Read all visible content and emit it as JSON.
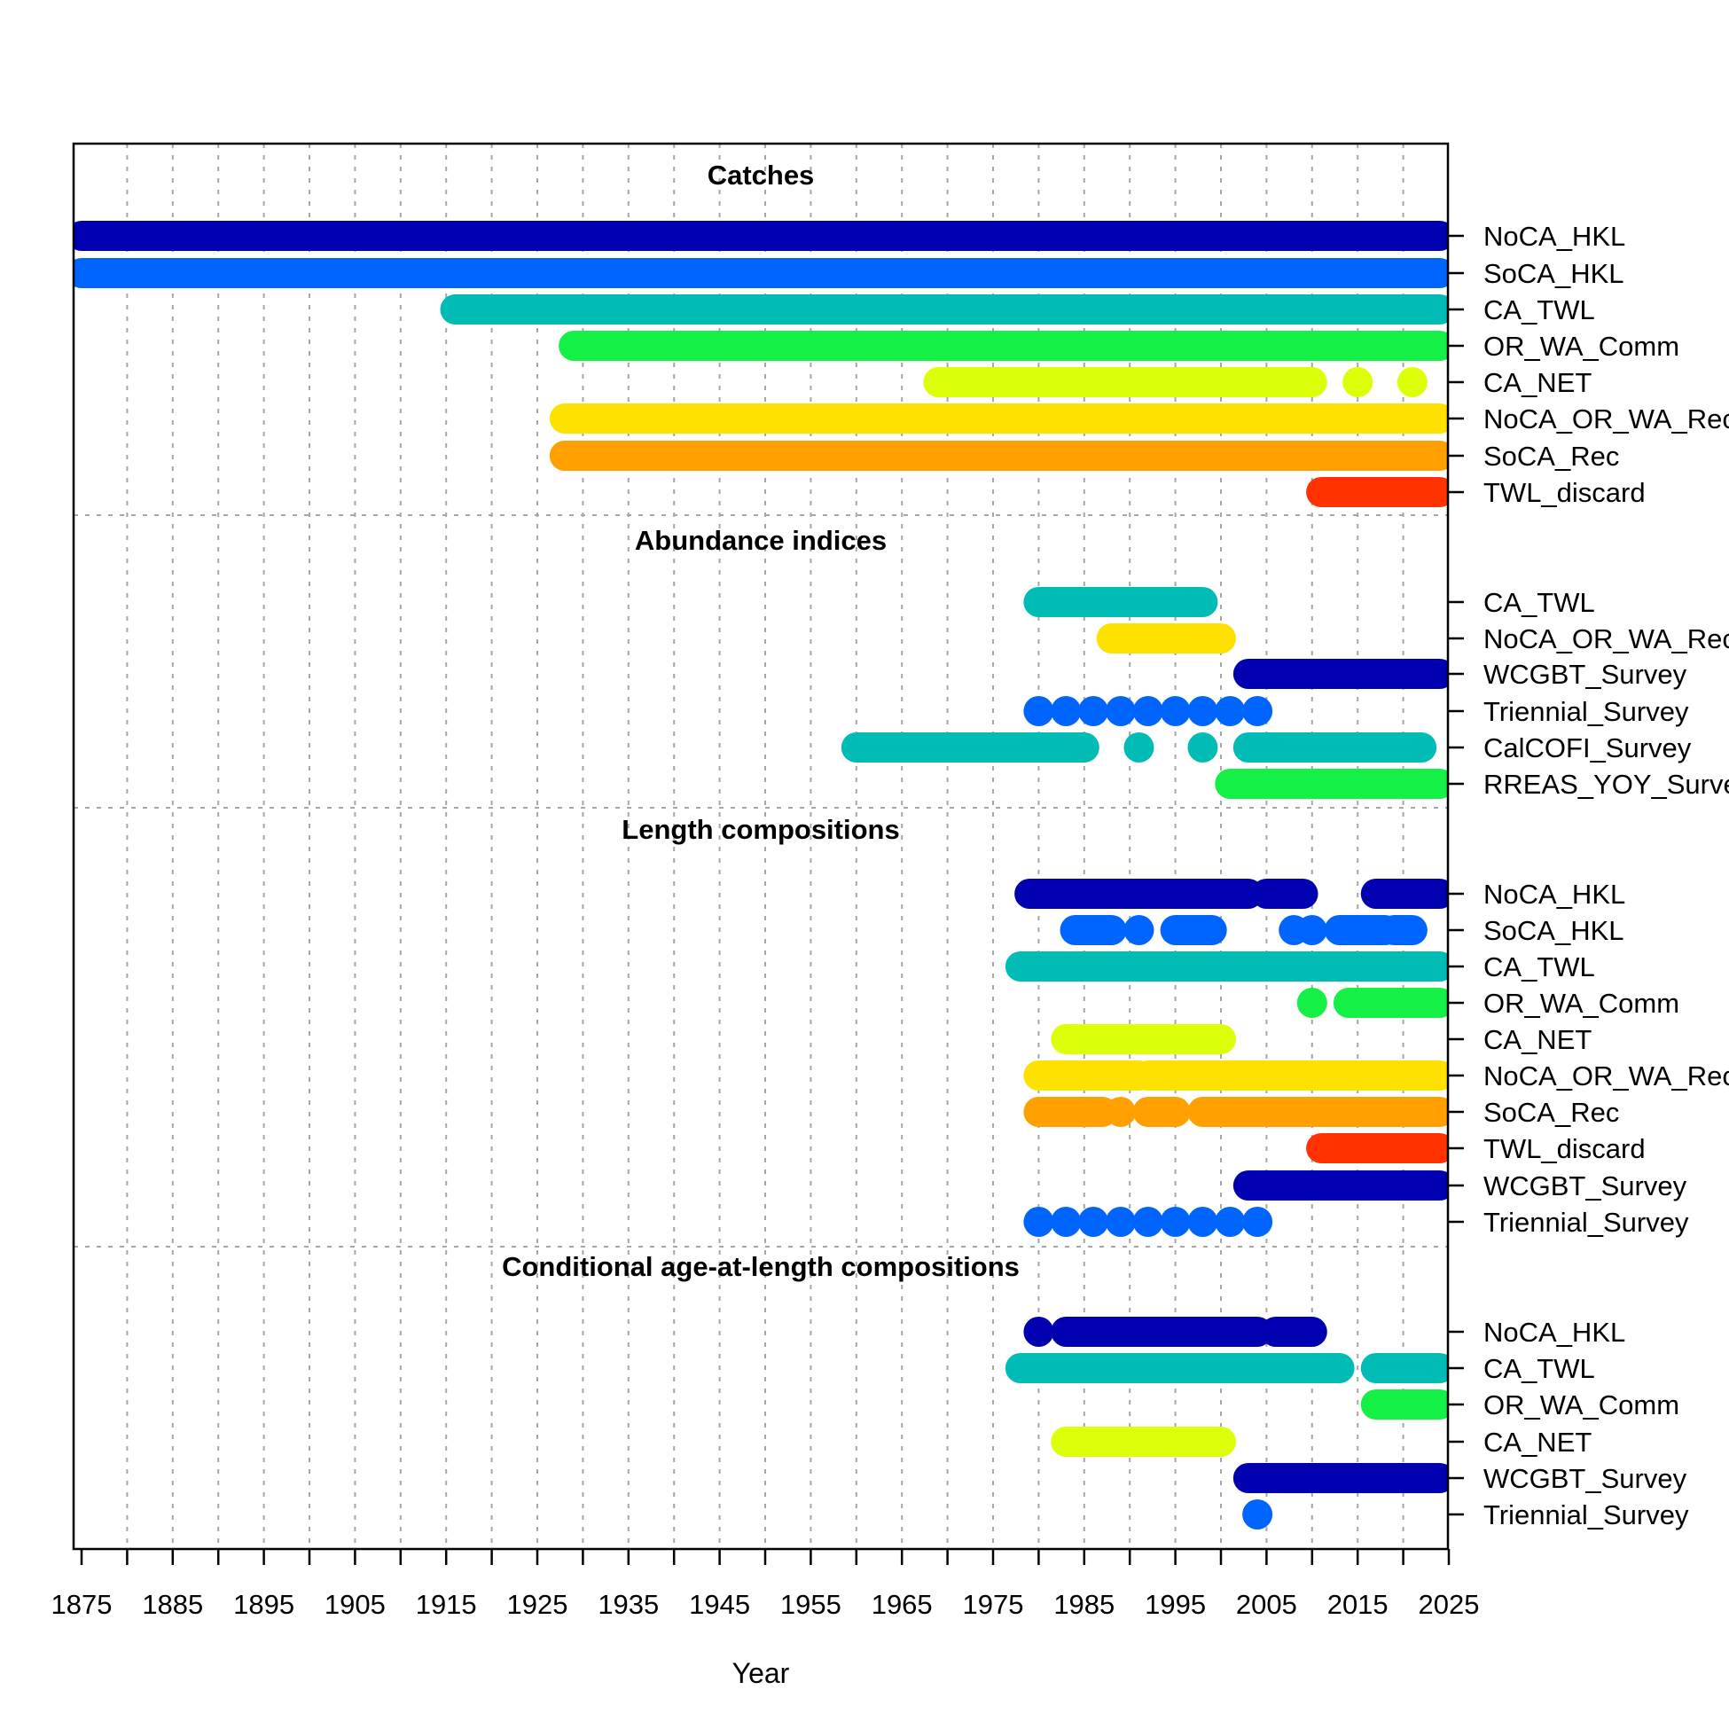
{
  "chart_data": {
    "type": "timeline",
    "xlabel": "Year",
    "xlim": [
      1875,
      2025
    ],
    "xticks": [
      "1875",
      "1885",
      "1895",
      "1905",
      "1915",
      "1925",
      "1935",
      "1945",
      "1955",
      "1965",
      "1975",
      "1985",
      "1995",
      "2005",
      "2015",
      "2025"
    ],
    "fleet_colors": {
      "NoCA_HKL": "#0000B0",
      "SoCA_HKL": "#0064FF",
      "CA_TWL": "#00BCB4",
      "OR_WA_Comm": "#14F046",
      "CA_NET": "#DCFF0A",
      "NoCA_OR_WA_Rec": "#FFE100",
      "SoCA_Rec": "#FFA000",
      "TWL_discard": "#FF3200",
      "WCGBT_Survey": "#0000B0",
      "Triennial_Survey": "#0064FF",
      "CalCOFI_Survey": "#00BCB4",
      "RREAS_YOY_Survey": "#14F046"
    },
    "sections": [
      {
        "title": "Catches",
        "rows": [
          {
            "label": "NoCA_HKL",
            "fleet": "NoCA_HKL",
            "ranges": [
              [
                1875,
                2024
              ]
            ]
          },
          {
            "label": "SoCA_HKL",
            "fleet": "SoCA_HKL",
            "ranges": [
              [
                1875,
                2024
              ]
            ]
          },
          {
            "label": "CA_TWL",
            "fleet": "CA_TWL",
            "ranges": [
              [
                1916,
                2024
              ]
            ]
          },
          {
            "label": "OR_WA_Comm",
            "fleet": "OR_WA_Comm",
            "ranges": [
              [
                1929,
                2024
              ]
            ]
          },
          {
            "label": "CA_NET",
            "fleet": "CA_NET",
            "ranges": [
              [
                1969,
                2010
              ],
              [
                2015,
                2015
              ],
              [
                2021,
                2021
              ]
            ]
          },
          {
            "label": "NoCA_OR_WA_Rec",
            "fleet": "NoCA_OR_WA_Rec",
            "ranges": [
              [
                1928,
                2024
              ]
            ]
          },
          {
            "label": "SoCA_Rec",
            "fleet": "SoCA_Rec",
            "ranges": [
              [
                1928,
                2024
              ]
            ]
          },
          {
            "label": "TWL_discard",
            "fleet": "TWL_discard",
            "ranges": [
              [
                2011,
                2024
              ]
            ]
          }
        ]
      },
      {
        "title": "Abundance indices",
        "rows": [
          {
            "label": "CA_TWL",
            "fleet": "CA_TWL",
            "ranges": [
              [
                1980,
                1998
              ]
            ]
          },
          {
            "label": "NoCA_OR_WA_Rec",
            "fleet": "NoCA_OR_WA_Rec",
            "ranges": [
              [
                1988,
                2000
              ]
            ]
          },
          {
            "label": "WCGBT_Survey",
            "fleet": "WCGBT_Survey",
            "ranges": [
              [
                2003,
                2024
              ]
            ]
          },
          {
            "label": "Triennial_Survey",
            "fleet": "Triennial_Survey",
            "ranges": [
              [
                1980,
                1980
              ],
              [
                1983,
                1983
              ],
              [
                1986,
                1986
              ],
              [
                1989,
                1989
              ],
              [
                1992,
                1992
              ],
              [
                1995,
                1995
              ],
              [
                1998,
                1998
              ],
              [
                2001,
                2001
              ],
              [
                2004,
                2004
              ]
            ]
          },
          {
            "label": "CalCOFI_Survey",
            "fleet": "CalCOFI_Survey",
            "ranges": [
              [
                1960,
                1985
              ],
              [
                1991,
                1991
              ],
              [
                1998,
                1998
              ],
              [
                2003,
                2022
              ]
            ]
          },
          {
            "label": "RREAS_YOY_Survey",
            "fleet": "RREAS_YOY_Survey",
            "ranges": [
              [
                2001,
                2024
              ]
            ]
          }
        ]
      },
      {
        "title": "Length compositions",
        "rows": [
          {
            "label": "NoCA_HKL",
            "fleet": "NoCA_HKL",
            "ranges": [
              [
                1979,
                2003
              ],
              [
                2005,
                2009
              ],
              [
                2017,
                2024
              ]
            ]
          },
          {
            "label": "SoCA_HKL",
            "fleet": "SoCA_HKL",
            "ranges": [
              [
                1984,
                1988
              ],
              [
                1991,
                1991
              ],
              [
                1995,
                1999
              ],
              [
                2008,
                2008
              ],
              [
                2010,
                2010
              ],
              [
                2013,
                2018
              ],
              [
                2019,
                2021
              ]
            ]
          },
          {
            "label": "CA_TWL",
            "fleet": "CA_TWL",
            "ranges": [
              [
                1978,
                2024
              ]
            ]
          },
          {
            "label": "OR_WA_Comm",
            "fleet": "OR_WA_Comm",
            "ranges": [
              [
                2010,
                2010
              ],
              [
                2014,
                2024
              ]
            ]
          },
          {
            "label": "CA_NET",
            "fleet": "CA_NET",
            "ranges": [
              [
                1983,
                2000
              ]
            ]
          },
          {
            "label": "NoCA_OR_WA_Rec",
            "fleet": "NoCA_OR_WA_Rec",
            "ranges": [
              [
                1980,
                1991
              ],
              [
                1992,
                2024
              ]
            ]
          },
          {
            "label": "SoCA_Rec",
            "fleet": "SoCA_Rec",
            "ranges": [
              [
                1980,
                1987
              ],
              [
                1989,
                1989
              ],
              [
                1992,
                1995
              ],
              [
                1998,
                2024
              ]
            ]
          },
          {
            "label": "TWL_discard",
            "fleet": "TWL_discard",
            "ranges": [
              [
                2011,
                2024
              ]
            ]
          },
          {
            "label": "WCGBT_Survey",
            "fleet": "WCGBT_Survey",
            "ranges": [
              [
                2003,
                2024
              ]
            ]
          },
          {
            "label": "Triennial_Survey",
            "fleet": "Triennial_Survey",
            "ranges": [
              [
                1980,
                1980
              ],
              [
                1983,
                1983
              ],
              [
                1986,
                1986
              ],
              [
                1989,
                1989
              ],
              [
                1992,
                1992
              ],
              [
                1995,
                1995
              ],
              [
                1998,
                1998
              ],
              [
                2001,
                2001
              ],
              [
                2004,
                2004
              ]
            ]
          }
        ]
      },
      {
        "title": "Conditional age-at-length compositions",
        "rows": [
          {
            "label": "NoCA_HKL",
            "fleet": "NoCA_HKL",
            "ranges": [
              [
                1980,
                1980
              ],
              [
                1983,
                2004
              ],
              [
                2006,
                2010
              ]
            ]
          },
          {
            "label": "CA_TWL",
            "fleet": "CA_TWL",
            "ranges": [
              [
                1978,
                2013
              ],
              [
                2017,
                2024
              ]
            ]
          },
          {
            "label": "OR_WA_Comm",
            "fleet": "OR_WA_Comm",
            "ranges": [
              [
                2017,
                2024
              ]
            ]
          },
          {
            "label": "CA_NET",
            "fleet": "CA_NET",
            "ranges": [
              [
                1983,
                2000
              ]
            ]
          },
          {
            "label": "WCGBT_Survey",
            "fleet": "WCGBT_Survey",
            "ranges": [
              [
                2003,
                2024
              ]
            ]
          },
          {
            "label": "Triennial_Survey",
            "fleet": "Triennial_Survey",
            "ranges": [
              [
                2004,
                2004
              ]
            ]
          }
        ]
      }
    ]
  }
}
